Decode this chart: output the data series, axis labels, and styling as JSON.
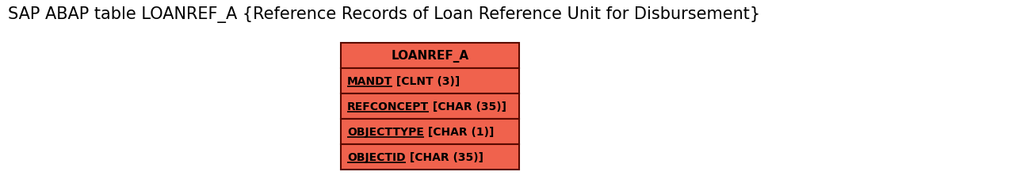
{
  "title": "SAP ABAP table LOANREF_A {Reference Records of Loan Reference Unit for Disbursement}",
  "title_fontsize": 15,
  "entity_name": "LOANREF_A",
  "fields": [
    {
      "name": "MANDT",
      "type": " [CLNT (3)]"
    },
    {
      "name": "REFCONCEPT",
      "type": " [CHAR (35)]"
    },
    {
      "name": "OBJECTTYPE",
      "type": " [CHAR (1)]"
    },
    {
      "name": "OBJECTID",
      "type": " [CHAR (35)]"
    }
  ],
  "box_color": "#f0624d",
  "border_color": "#5a0a00",
  "text_color": "#000000",
  "bg_color": "#ffffff",
  "fig_width": 12.97,
  "fig_height": 2.32,
  "dpi": 100
}
